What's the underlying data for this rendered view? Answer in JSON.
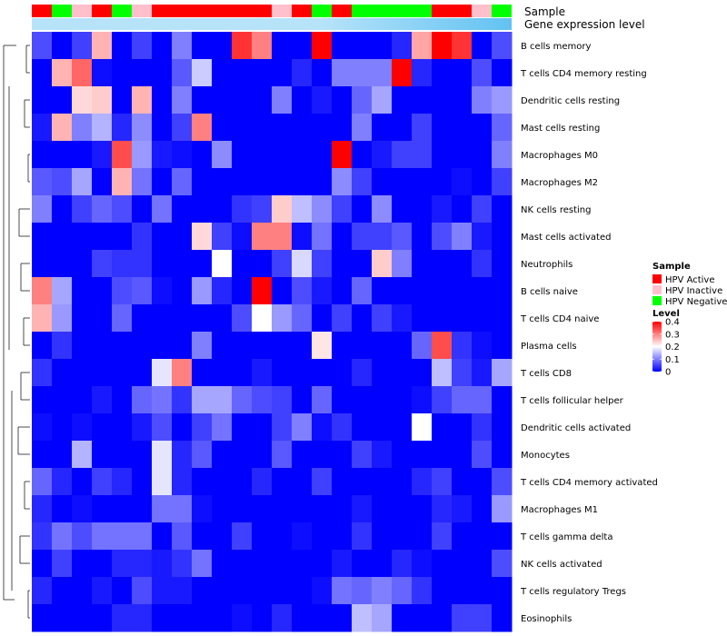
{
  "chart_data": {
    "type": "heatmap",
    "title": "",
    "annotation_labels": [
      "Sample",
      "Gene expression level"
    ],
    "rows": [
      "B cells memory",
      "T cells CD4 memory resting",
      "Dendritic cells resting",
      "Mast cells resting",
      "Macrophages M0",
      "Macrophages M2",
      "NK cells resting",
      "Mast cells activated",
      "Neutrophils",
      "B cells naive",
      "T cells CD4 naive",
      "Plasma cells",
      "T cells CD8",
      "T cells follicular helper",
      "Dendritic cells activated",
      "Monocytes",
      "T cells CD4 memory activated",
      "Macrophages M1",
      "T cells gamma delta",
      "NK cells activated",
      "T cells regulatory  Tregs",
      "Eosinophils"
    ],
    "sample_groups": [
      "A",
      "N",
      "I",
      "A",
      "N",
      "I",
      "A",
      "A",
      "A",
      "A",
      "A",
      "A",
      "I",
      "A",
      "N",
      "A",
      "N",
      "N",
      "N",
      "N",
      "A",
      "A",
      "I",
      "N"
    ],
    "gene_expression_level": [
      0.05,
      0.05,
      0.05,
      0.05,
      0.05,
      0.05,
      0.05,
      0.05,
      0.05,
      0.05,
      0.05,
      0.05,
      0.05,
      0.05,
      0.05,
      0.05,
      0.05,
      0.05,
      0.05,
      0.05,
      0.05,
      0.05,
      0.05,
      0.05
    ],
    "values": [
      [
        0.06,
        0.0,
        0.05,
        0.26,
        0.0,
        0.05,
        0.0,
        0.1,
        0.0,
        0.0,
        0.36,
        0.3,
        0.0,
        0.0,
        0.4,
        0.0,
        0.0,
        0.0,
        0.03,
        0.27,
        0.4,
        0.36,
        0.0,
        0.06
      ],
      [
        0.0,
        0.26,
        0.32,
        0.01,
        0.0,
        0.0,
        0.0,
        0.07,
        0.16,
        0.0,
        0.0,
        0.0,
        0.0,
        0.03,
        0.0,
        0.1,
        0.1,
        0.1,
        0.4,
        0.03,
        0.0,
        0.0,
        0.06,
        0.0
      ],
      [
        0.0,
        0.0,
        0.23,
        0.24,
        0.0,
        0.26,
        0.0,
        0.1,
        0.0,
        0.0,
        0.0,
        0.0,
        0.1,
        0.0,
        0.02,
        0.0,
        0.08,
        0.13,
        0.0,
        0.0,
        0.0,
        0.0,
        0.1,
        0.12
      ],
      [
        0.02,
        0.26,
        0.1,
        0.14,
        0.03,
        0.11,
        0.0,
        0.05,
        0.3,
        0.0,
        0.0,
        0.0,
        0.0,
        0.0,
        0.0,
        0.0,
        0.1,
        0.0,
        0.0,
        0.05,
        0.0,
        0.0,
        0.0,
        0.08
      ],
      [
        0.0,
        0.0,
        0.0,
        0.02,
        0.34,
        0.12,
        0.02,
        0.01,
        0.0,
        0.11,
        0.0,
        0.0,
        0.0,
        0.0,
        0.0,
        0.4,
        0.0,
        0.02,
        0.05,
        0.05,
        0.0,
        0.0,
        0.0,
        0.1
      ],
      [
        0.07,
        0.06,
        0.13,
        0.0,
        0.26,
        0.09,
        0.0,
        0.08,
        0.0,
        0.0,
        0.0,
        0.0,
        0.0,
        0.0,
        0.0,
        0.11,
        0.05,
        0.0,
        0.0,
        0.0,
        0.0,
        0.01,
        0.0,
        0.05
      ],
      [
        0.1,
        0.0,
        0.05,
        0.08,
        0.06,
        0.0,
        0.09,
        0.0,
        0.0,
        0.0,
        0.04,
        0.05,
        0.24,
        0.15,
        0.11,
        0.05,
        0.0,
        0.11,
        0.0,
        0.0,
        0.02,
        0.0,
        0.05,
        0.0
      ],
      [
        0.0,
        0.0,
        0.0,
        0.0,
        0.0,
        0.04,
        0.0,
        0.0,
        0.23,
        0.05,
        0.01,
        0.3,
        0.3,
        0.01,
        0.09,
        0.0,
        0.05,
        0.05,
        0.07,
        0.0,
        0.06,
        0.1,
        0.02,
        0.0
      ],
      [
        0.0,
        0.0,
        0.0,
        0.05,
        0.04,
        0.04,
        0.0,
        0.0,
        0.0,
        0.2,
        0.0,
        0.0,
        0.05,
        0.17,
        0.05,
        0.0,
        0.0,
        0.24,
        0.1,
        0.0,
        0.0,
        0.0,
        0.04,
        0.0
      ],
      [
        0.3,
        0.13,
        0.0,
        0.0,
        0.06,
        0.07,
        0.01,
        0.0,
        0.12,
        0.03,
        0.0,
        0.4,
        0.0,
        0.06,
        0.02,
        0.0,
        0.08,
        0.0,
        0.0,
        0.0,
        0.0,
        0.0,
        0.0,
        0.0
      ],
      [
        0.26,
        0.12,
        0.0,
        0.0,
        0.08,
        0.0,
        0.0,
        0.0,
        0.0,
        0.0,
        0.06,
        0.2,
        0.12,
        0.08,
        0.0,
        0.05,
        0.0,
        0.05,
        0.02,
        0.0,
        0.0,
        0.0,
        0.0,
        0.0
      ],
      [
        0.0,
        0.04,
        0.0,
        0.0,
        0.0,
        0.0,
        0.0,
        0.0,
        0.1,
        0.0,
        0.0,
        0.0,
        0.0,
        0.0,
        0.22,
        0.0,
        0.0,
        0.0,
        0.0,
        0.08,
        0.34,
        0.04,
        0.01,
        0.0
      ],
      [
        0.04,
        0.0,
        0.0,
        0.0,
        0.0,
        0.0,
        0.18,
        0.3,
        0.0,
        0.0,
        0.0,
        0.02,
        0.0,
        0.0,
        0.0,
        0.0,
        0.03,
        0.0,
        0.0,
        0.0,
        0.15,
        0.05,
        0.02,
        0.13
      ],
      [
        0.0,
        0.0,
        0.0,
        0.02,
        0.0,
        0.08,
        0.09,
        0.04,
        0.13,
        0.13,
        0.08,
        0.06,
        0.05,
        0.0,
        0.08,
        0.0,
        0.0,
        0.0,
        0.0,
        0.01,
        0.05,
        0.08,
        0.08,
        0.0
      ],
      [
        0.01,
        0.0,
        0.01,
        0.0,
        0.0,
        0.02,
        0.06,
        0.0,
        0.05,
        0.09,
        0.0,
        0.0,
        0.05,
        0.1,
        0.01,
        0.04,
        0.0,
        0.0,
        0.0,
        0.2,
        0.0,
        0.0,
        0.04,
        0.0
      ],
      [
        0.0,
        0.0,
        0.14,
        0.0,
        0.0,
        0.0,
        0.18,
        0.03,
        0.07,
        0.0,
        0.0,
        0.0,
        0.07,
        0.0,
        0.0,
        0.0,
        0.05,
        0.02,
        0.0,
        0.0,
        0.0,
        0.0,
        0.06,
        0.0
      ],
      [
        0.08,
        0.03,
        0.0,
        0.05,
        0.03,
        0.0,
        0.18,
        0.03,
        0.0,
        0.0,
        0.0,
        0.03,
        0.0,
        0.0,
        0.05,
        0.0,
        0.0,
        0.0,
        0.0,
        0.03,
        0.05,
        0.0,
        0.0,
        0.06
      ],
      [
        0.03,
        0.0,
        0.01,
        0.0,
        0.0,
        0.0,
        0.09,
        0.09,
        0.01,
        0.0,
        0.0,
        0.0,
        0.0,
        0.0,
        0.0,
        0.0,
        0.02,
        0.0,
        0.0,
        0.0,
        0.03,
        0.02,
        0.0,
        0.12
      ],
      [
        0.04,
        0.09,
        0.06,
        0.09,
        0.09,
        0.09,
        0.0,
        0.07,
        0.0,
        0.0,
        0.05,
        0.0,
        0.0,
        0.01,
        0.0,
        0.0,
        0.04,
        0.0,
        0.0,
        0.0,
        0.05,
        0.0,
        0.0,
        0.0
      ],
      [
        0.0,
        0.05,
        0.0,
        0.0,
        0.03,
        0.03,
        0.02,
        0.04,
        0.09,
        0.0,
        0.0,
        0.0,
        0.0,
        0.0,
        0.0,
        0.02,
        0.0,
        0.0,
        0.03,
        0.01,
        0.0,
        0.0,
        0.0,
        0.06
      ],
      [
        0.03,
        0.0,
        0.0,
        0.02,
        0.0,
        0.06,
        0.02,
        0.02,
        0.0,
        0.0,
        0.0,
        0.0,
        0.0,
        0.0,
        0.01,
        0.09,
        0.08,
        0.1,
        0.08,
        0.04,
        0.0,
        0.0,
        0.0,
        0.0
      ],
      [
        0.0,
        0.0,
        0.0,
        0.0,
        0.03,
        0.03,
        0.0,
        0.0,
        0.0,
        0.0,
        0.01,
        0.0,
        0.03,
        0.0,
        0.0,
        0.0,
        0.15,
        0.13,
        0.0,
        0.0,
        0.0,
        0.05,
        0.05,
        0.0
      ]
    ],
    "legend_sample": {
      "title": "Sample",
      "items": [
        {
          "key": "A",
          "label": "HPV Active",
          "color": "#ff0000"
        },
        {
          "key": "I",
          "label": "HPV Inactive",
          "color": "#ffc0cb"
        },
        {
          "key": "N",
          "label": "HPV Negative",
          "color": "#00ff00"
        }
      ]
    },
    "legend_level": {
      "title": "Level",
      "ticks": [
        0.4,
        0.3,
        0.2,
        0.1,
        0
      ],
      "tick_labels": [
        "0.4",
        "0.3",
        "0.2",
        "0.1",
        "0"
      ],
      "range": [
        0,
        0.4
      ],
      "colors": [
        "#0000ff",
        "#ffffff",
        "#ff0000"
      ]
    },
    "gene_level_color": "#62c2f2",
    "gene_level_color_light": "#b7e3f9"
  }
}
